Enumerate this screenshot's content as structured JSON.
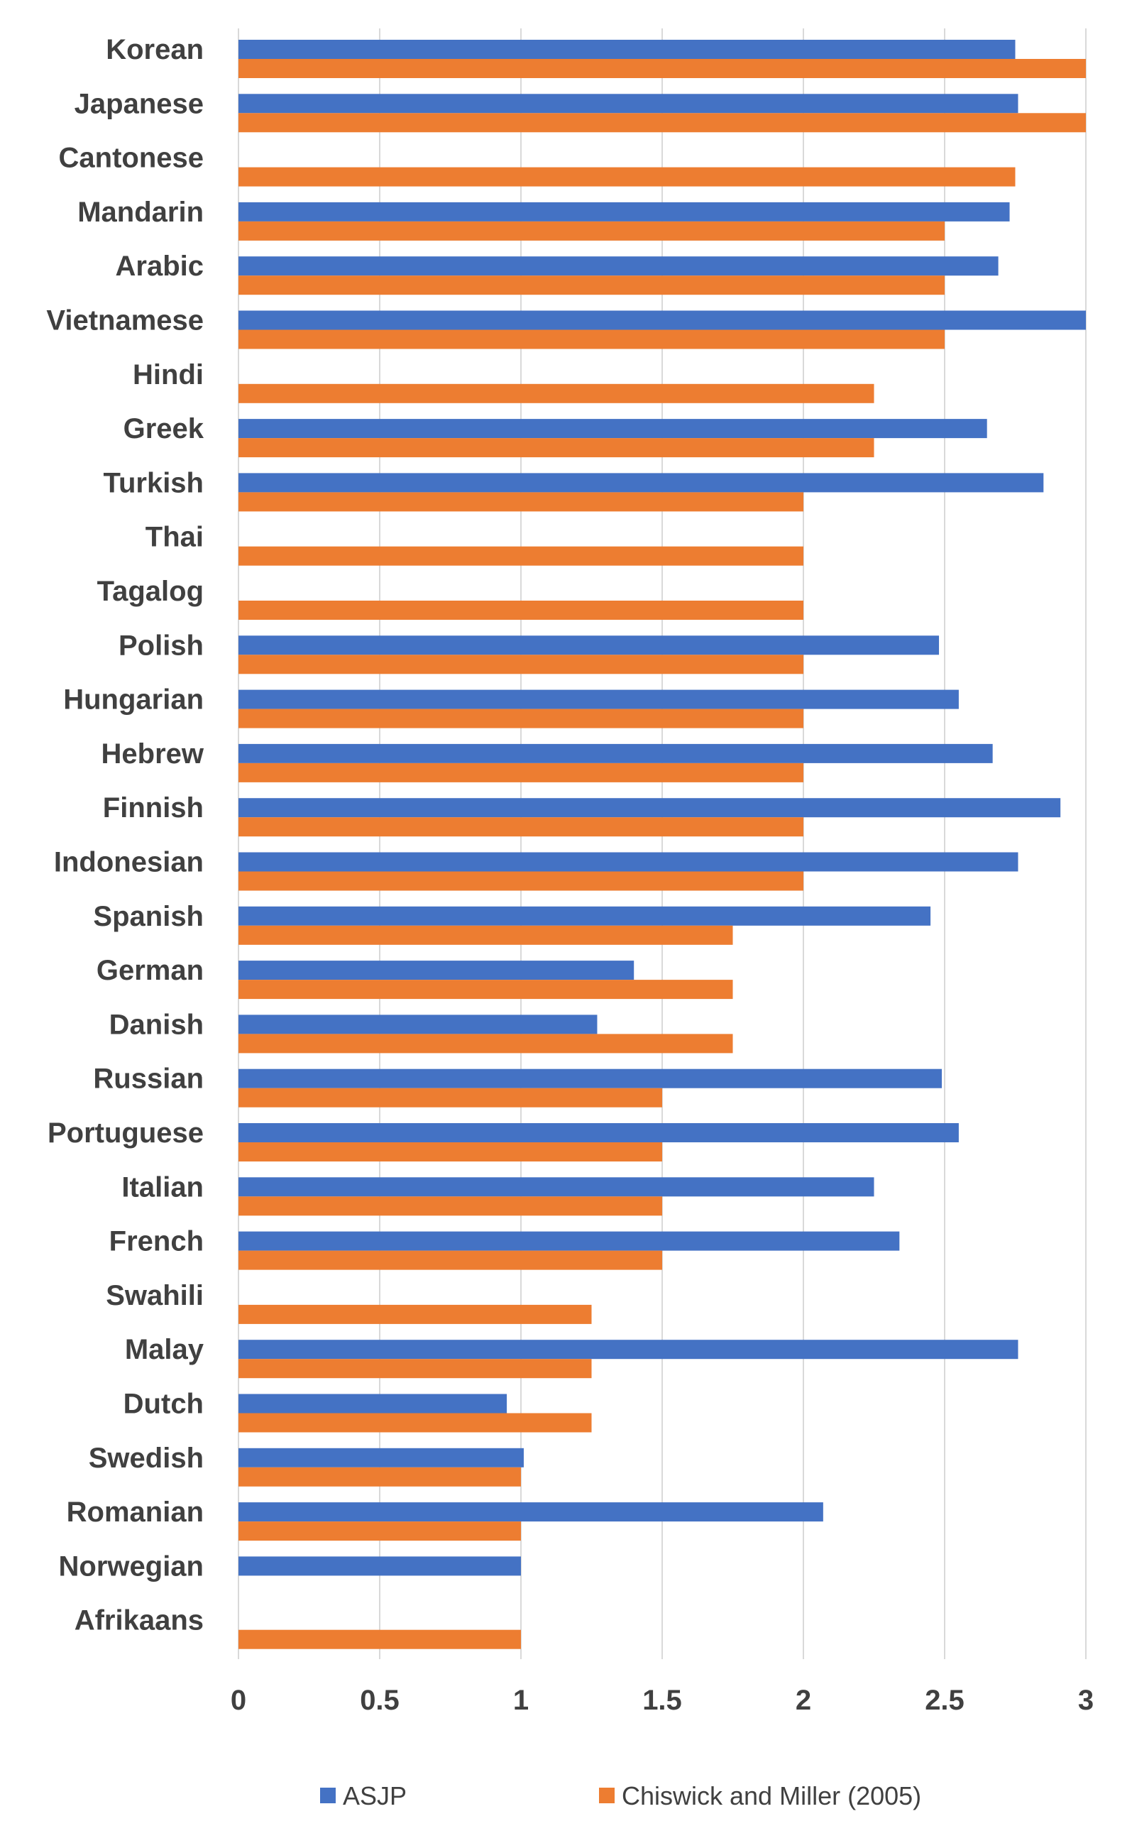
{
  "chart_data": {
    "type": "bar",
    "orientation": "horizontal",
    "title": "",
    "xlabel": "",
    "ylabel": "",
    "xlim": [
      0,
      3
    ],
    "xticks": [
      "0",
      "0.5",
      "1",
      "1.5",
      "2",
      "2.5",
      "3"
    ],
    "grid": true,
    "legend_position": "bottom",
    "categories": [
      "Korean",
      "Japanese",
      "Cantonese",
      "Mandarin",
      "Arabic",
      "Vietnamese",
      "Hindi",
      "Greek",
      "Turkish",
      "Thai",
      "Tagalog",
      "Polish",
      "Hungarian",
      "Hebrew",
      "Finnish",
      "Indonesian",
      "Spanish",
      "German",
      "Danish",
      "Russian",
      "Portuguese",
      "Italian",
      "French",
      "Swahili",
      "Malay",
      "Dutch",
      "Swedish",
      "Romanian",
      "Norwegian",
      "Afrikaans"
    ],
    "series": [
      {
        "name": "ASJP",
        "color": "#4472C4",
        "values": [
          2.75,
          2.76,
          null,
          2.73,
          2.69,
          3.0,
          null,
          2.65,
          2.85,
          null,
          null,
          2.48,
          2.55,
          2.67,
          2.91,
          2.76,
          2.45,
          1.4,
          1.27,
          2.49,
          2.55,
          2.25,
          2.34,
          null,
          2.76,
          0.95,
          1.01,
          2.07,
          1.0,
          null
        ]
      },
      {
        "name": "Chiswick and Miller (2005)",
        "color": "#ED7D31",
        "values": [
          3.0,
          3.0,
          2.75,
          2.5,
          2.5,
          2.5,
          2.25,
          2.25,
          2.0,
          2.0,
          2.0,
          2.0,
          2.0,
          2.0,
          2.0,
          2.0,
          1.75,
          1.75,
          1.75,
          1.5,
          1.5,
          1.5,
          1.5,
          1.25,
          1.25,
          1.25,
          1.0,
          1.0,
          null,
          1.0
        ]
      }
    ]
  }
}
